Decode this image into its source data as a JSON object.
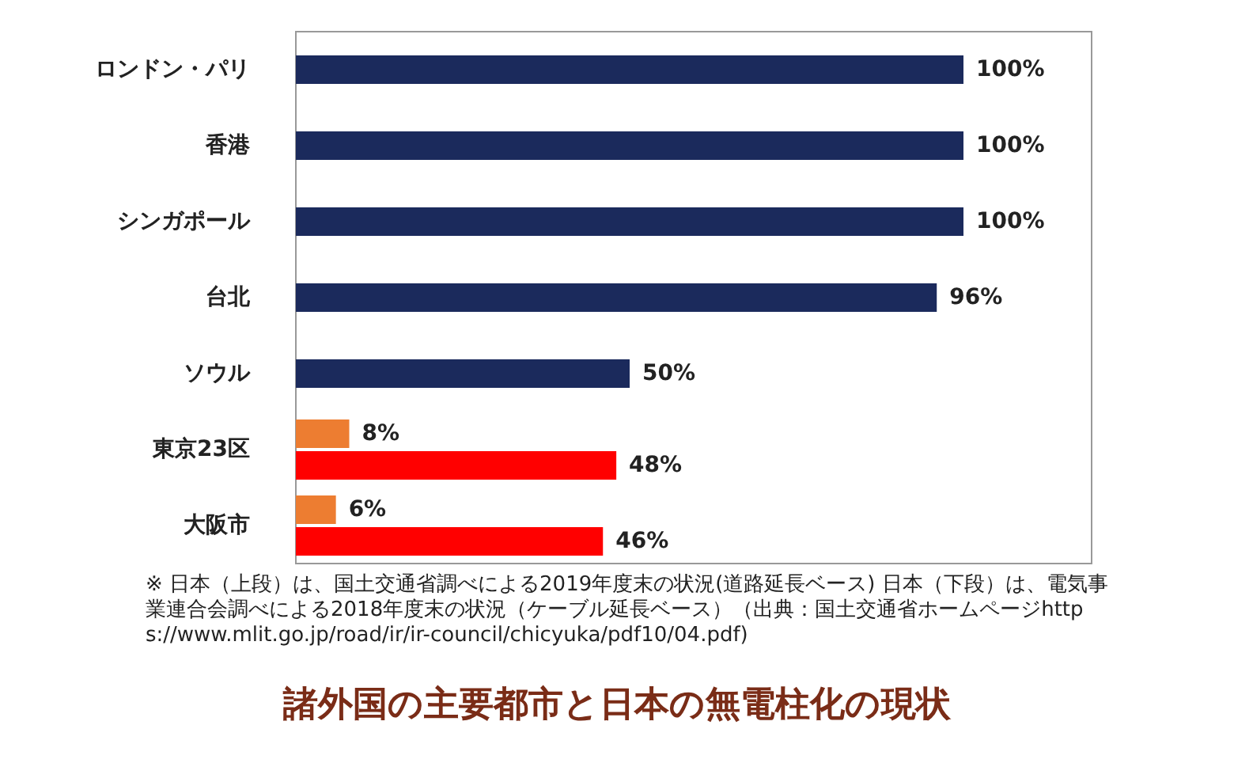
{
  "chart_data": {
    "type": "bar",
    "orientation": "horizontal",
    "title": "諸外国の主要都市と日本の無電柱化の現状",
    "categories": [
      "ロンドン・パリ",
      "香港",
      "シンガポール",
      "台北",
      "ソウル",
      "東京23区",
      "大阪市"
    ],
    "series": [
      {
        "color": "#1b2a5c",
        "values": [
          100,
          100,
          100,
          96,
          50,
          null,
          null
        ],
        "value_labels": [
          "100%",
          "100%",
          "100%",
          "96%",
          "50%",
          null,
          null
        ]
      },
      {
        "color": "#ed7d31",
        "values": [
          null,
          null,
          null,
          null,
          null,
          8,
          6
        ],
        "value_labels": [
          null,
          null,
          null,
          null,
          null,
          "8%",
          "6%"
        ]
      },
      {
        "color": "#ff0000",
        "values": [
          null,
          null,
          null,
          null,
          null,
          48,
          46
        ],
        "value_labels": [
          null,
          null,
          null,
          null,
          null,
          "48%",
          "46%"
        ]
      }
    ],
    "annotations": [
      "※ 日本（上段）は、国土交通省調べによる2019年度末の状況(道路延長ベース) 日本（下段）は、電気事業連合会調べによる2018年度末の状況（ケーブル延長ベース）（出典：国土交通省ホームページhttps://www.mlit.go.jp/road/ir/ir-council/chicyuka/pdf10/04.pdf)"
    ]
  }
}
